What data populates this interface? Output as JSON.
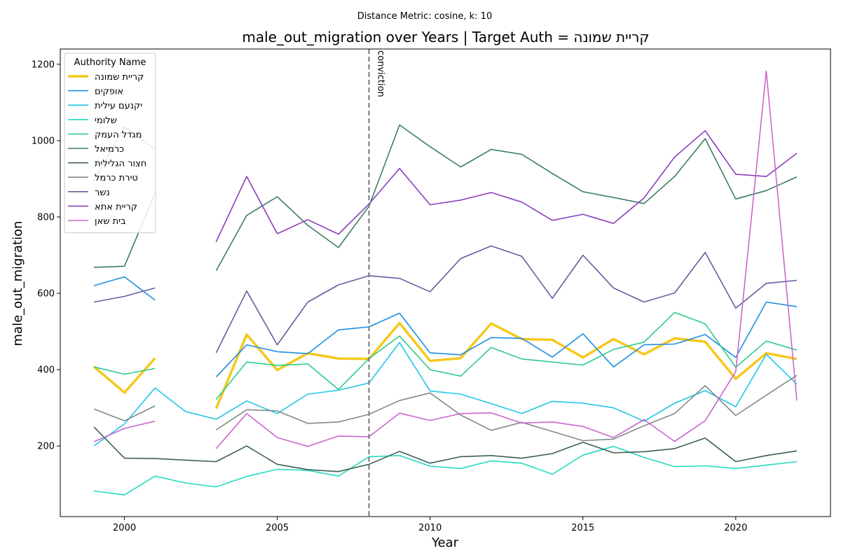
{
  "chart_data": {
    "type": "line",
    "suptitle": "Distance Metric: cosine, k: 10",
    "title": "male_out_migration over Years | Target Auth = קריית שמונה",
    "xlabel": "Year",
    "ylabel": "male_out_migration",
    "xlim": [
      1997.9,
      2023.1
    ],
    "ylim": [
      15,
      1240
    ],
    "xticks": [
      2000,
      2005,
      2010,
      2015,
      2020
    ],
    "yticks": [
      200,
      400,
      600,
      800,
      1000,
      1200
    ],
    "legend_title": "Authority Name",
    "legend_position": "upper-left",
    "annotation": {
      "x": 2008,
      "label": "conviction"
    },
    "series": [
      {
        "name": "קריית שמונה",
        "color": "#f4c81e",
        "width": 3.5,
        "points": [
          [
            1999,
            408
          ],
          [
            2000,
            340
          ],
          [
            2001,
            430
          ],
          null,
          [
            2003,
            298
          ],
          [
            2004,
            492
          ],
          [
            2005,
            399
          ],
          [
            2006,
            443
          ],
          [
            2007,
            429
          ],
          [
            2008,
            428
          ],
          [
            2009,
            522
          ],
          [
            2010,
            423
          ],
          [
            2011,
            430
          ],
          [
            2012,
            521
          ],
          [
            2013,
            480
          ],
          [
            2014,
            478
          ],
          [
            2015,
            432
          ],
          [
            2016,
            480
          ],
          [
            2017,
            440
          ],
          [
            2018,
            482
          ],
          [
            2019,
            473
          ],
          [
            2020,
            376
          ],
          [
            2021,
            443
          ],
          [
            2022,
            428
          ]
        ]
      },
      {
        "name": "אופקים",
        "color": "#1e8fe0",
        "width": 1.6,
        "points": [
          [
            1999,
            620
          ],
          [
            2000,
            643
          ],
          [
            2001,
            582
          ],
          null,
          [
            2003,
            381
          ],
          [
            2004,
            465
          ],
          [
            2005,
            447
          ],
          [
            2006,
            442
          ],
          [
            2007,
            504
          ],
          [
            2008,
            512
          ],
          [
            2009,
            548
          ],
          [
            2010,
            444
          ],
          [
            2011,
            439
          ],
          [
            2012,
            484
          ],
          [
            2013,
            482
          ],
          [
            2014,
            433
          ],
          [
            2015,
            494
          ],
          [
            2016,
            407
          ],
          [
            2017,
            465
          ],
          [
            2018,
            467
          ],
          [
            2019,
            492
          ],
          [
            2020,
            432
          ],
          [
            2021,
            577
          ],
          [
            2022,
            565
          ]
        ]
      },
      {
        "name": "יקנעם עילית",
        "color": "#22c5e8",
        "width": 1.6,
        "points": [
          [
            1999,
            200
          ],
          [
            2000,
            258
          ],
          [
            2001,
            352
          ],
          [
            2002,
            290
          ],
          [
            2003,
            270
          ],
          [
            2004,
            318
          ],
          [
            2005,
            285
          ],
          [
            2006,
            336
          ],
          [
            2007,
            346
          ],
          [
            2008,
            365
          ],
          [
            2009,
            471
          ],
          [
            2010,
            344
          ],
          [
            2011,
            336
          ],
          [
            2012,
            311
          ],
          [
            2013,
            285
          ],
          [
            2014,
            317
          ],
          [
            2015,
            312
          ],
          [
            2016,
            300
          ],
          [
            2017,
            265
          ],
          [
            2018,
            312
          ],
          [
            2019,
            345
          ],
          [
            2020,
            303
          ],
          [
            2021,
            440
          ],
          [
            2022,
            362
          ]
        ]
      },
      {
        "name": "שלומי",
        "color": "#22dcc0",
        "width": 1.6,
        "points": [
          [
            1999,
            82
          ],
          [
            2000,
            72
          ],
          [
            2001,
            121
          ],
          [
            2002,
            103
          ],
          [
            2003,
            93
          ],
          [
            2004,
            120
          ],
          [
            2005,
            139
          ],
          [
            2006,
            136
          ],
          [
            2007,
            121
          ],
          [
            2008,
            172
          ],
          [
            2009,
            175
          ],
          [
            2010,
            147
          ],
          [
            2011,
            141
          ],
          [
            2012,
            161
          ],
          [
            2013,
            155
          ],
          [
            2014,
            126
          ],
          [
            2015,
            176
          ],
          [
            2016,
            199
          ],
          [
            2017,
            170
          ],
          [
            2018,
            146
          ],
          [
            2019,
            148
          ],
          [
            2020,
            141
          ],
          [
            2021,
            150
          ],
          [
            2022,
            159
          ]
        ]
      },
      {
        "name": "מגדל העמק",
        "color": "#2ecc87",
        "width": 1.6,
        "points": [
          [
            1999,
            407
          ],
          [
            2000,
            388
          ],
          [
            2001,
            403
          ],
          null,
          [
            2003,
            322
          ],
          [
            2004,
            420
          ],
          [
            2005,
            411
          ],
          [
            2006,
            415
          ],
          [
            2007,
            348
          ],
          [
            2008,
            429
          ],
          [
            2009,
            488
          ],
          [
            2010,
            400
          ],
          [
            2011,
            383
          ],
          [
            2012,
            458
          ],
          [
            2013,
            428
          ],
          [
            2014,
            420
          ],
          [
            2015,
            412
          ],
          [
            2016,
            453
          ],
          [
            2017,
            472
          ],
          [
            2018,
            550
          ],
          [
            2019,
            520
          ],
          [
            2020,
            406
          ],
          [
            2021,
            475
          ],
          [
            2022,
            451
          ]
        ]
      },
      {
        "name": "כרמיאל",
        "color": "#3a7d65",
        "width": 1.6,
        "points": [
          [
            1999,
            668
          ],
          [
            2000,
            671
          ],
          [
            2001,
            862
          ],
          null,
          [
            2003,
            659
          ],
          [
            2004,
            804
          ],
          [
            2005,
            853
          ],
          [
            2006,
            778
          ],
          [
            2007,
            720
          ],
          [
            2008,
            828
          ],
          [
            2009,
            1041
          ],
          [
            2010,
            984
          ],
          [
            2011,
            931
          ],
          [
            2012,
            977
          ],
          [
            2013,
            964
          ],
          [
            2014,
            914
          ],
          [
            2015,
            866
          ],
          [
            2016,
            851
          ],
          [
            2017,
            835
          ],
          [
            2018,
            906
          ],
          [
            2019,
            1005
          ],
          [
            2020,
            847
          ],
          [
            2021,
            869
          ],
          [
            2022,
            905
          ]
        ]
      },
      {
        "name": "חצור הגלילית",
        "color": "#3b6054",
        "width": 1.6,
        "points": [
          [
            1999,
            250
          ],
          [
            2000,
            168
          ],
          [
            2001,
            167
          ],
          [
            2002,
            163
          ],
          [
            2003,
            159
          ],
          [
            2004,
            200
          ],
          [
            2005,
            152
          ],
          [
            2006,
            138
          ],
          [
            2007,
            133
          ],
          [
            2008,
            152
          ],
          [
            2009,
            186
          ],
          [
            2010,
            155
          ],
          [
            2011,
            172
          ],
          [
            2012,
            175
          ],
          [
            2013,
            168
          ],
          [
            2014,
            180
          ],
          [
            2015,
            210
          ],
          [
            2016,
            182
          ],
          [
            2017,
            185
          ],
          [
            2018,
            193
          ],
          [
            2019,
            221
          ],
          [
            2020,
            159
          ],
          [
            2021,
            175
          ],
          [
            2022,
            187
          ]
        ]
      },
      {
        "name": "טירת כרמל",
        "color": "#7e8c88",
        "width": 1.6,
        "points": [
          [
            1999,
            297
          ],
          [
            2000,
            266
          ],
          [
            2001,
            305
          ],
          null,
          [
            2003,
            242
          ],
          [
            2004,
            295
          ],
          [
            2005,
            292
          ],
          [
            2006,
            259
          ],
          [
            2007,
            263
          ],
          [
            2008,
            283
          ],
          [
            2009,
            319
          ],
          [
            2010,
            339
          ],
          [
            2011,
            281
          ],
          [
            2012,
            241
          ],
          [
            2013,
            262
          ],
          [
            2014,
            238
          ],
          [
            2015,
            214
          ],
          [
            2016,
            218
          ],
          [
            2017,
            253
          ],
          [
            2018,
            285
          ],
          [
            2019,
            358
          ],
          [
            2020,
            280
          ],
          [
            2021,
            333
          ],
          [
            2022,
            385
          ]
        ]
      },
      {
        "name": "נשר",
        "color": "#6060a0",
        "width": 1.6,
        "points": [
          [
            1999,
            577
          ],
          [
            2000,
            592
          ],
          [
            2001,
            614
          ],
          null,
          [
            2003,
            444
          ],
          [
            2004,
            606
          ],
          [
            2005,
            465
          ],
          [
            2006,
            577
          ],
          [
            2007,
            622
          ],
          [
            2008,
            646
          ],
          [
            2009,
            639
          ],
          [
            2010,
            604
          ],
          [
            2011,
            691
          ],
          [
            2012,
            724
          ],
          [
            2013,
            697
          ],
          [
            2014,
            587
          ],
          [
            2015,
            700
          ],
          [
            2016,
            614
          ],
          [
            2017,
            577
          ],
          [
            2018,
            601
          ],
          [
            2019,
            707
          ],
          [
            2020,
            561
          ],
          [
            2021,
            626
          ],
          [
            2022,
            634
          ]
        ]
      },
      {
        "name": "קריית אתא",
        "color": "#8a3fbb",
        "width": 1.6,
        "points": [
          [
            1999,
            895
          ],
          [
            2000,
            1036
          ],
          [
            2001,
            977
          ],
          null,
          [
            2003,
            735
          ],
          [
            2004,
            906
          ],
          [
            2005,
            756
          ],
          [
            2006,
            793
          ],
          [
            2007,
            755
          ],
          [
            2008,
            834
          ],
          [
            2009,
            927
          ],
          [
            2010,
            832
          ],
          [
            2011,
            844
          ],
          [
            2012,
            864
          ],
          [
            2013,
            839
          ],
          [
            2014,
            791
          ],
          [
            2015,
            807
          ],
          [
            2016,
            783
          ],
          [
            2017,
            850
          ],
          [
            2018,
            957
          ],
          [
            2019,
            1026
          ],
          [
            2020,
            912
          ],
          [
            2021,
            906
          ],
          [
            2022,
            967
          ]
        ]
      },
      {
        "name": "בית שאן",
        "color": "#cc66cc",
        "width": 1.6,
        "points": [
          [
            1999,
            211
          ],
          [
            2000,
            246
          ],
          [
            2001,
            265
          ],
          null,
          [
            2003,
            193
          ],
          [
            2004,
            285
          ],
          [
            2005,
            222
          ],
          [
            2006,
            199
          ],
          [
            2007,
            226
          ],
          [
            2008,
            224
          ],
          [
            2009,
            286
          ],
          [
            2010,
            267
          ],
          [
            2011,
            285
          ],
          [
            2012,
            287
          ],
          [
            2013,
            260
          ],
          [
            2014,
            263
          ],
          [
            2015,
            251
          ],
          [
            2016,
            222
          ],
          [
            2017,
            269
          ],
          [
            2018,
            212
          ],
          [
            2019,
            266
          ],
          [
            2020,
            395
          ],
          [
            2021,
            1182
          ],
          [
            2022,
            319
          ]
        ]
      }
    ]
  }
}
